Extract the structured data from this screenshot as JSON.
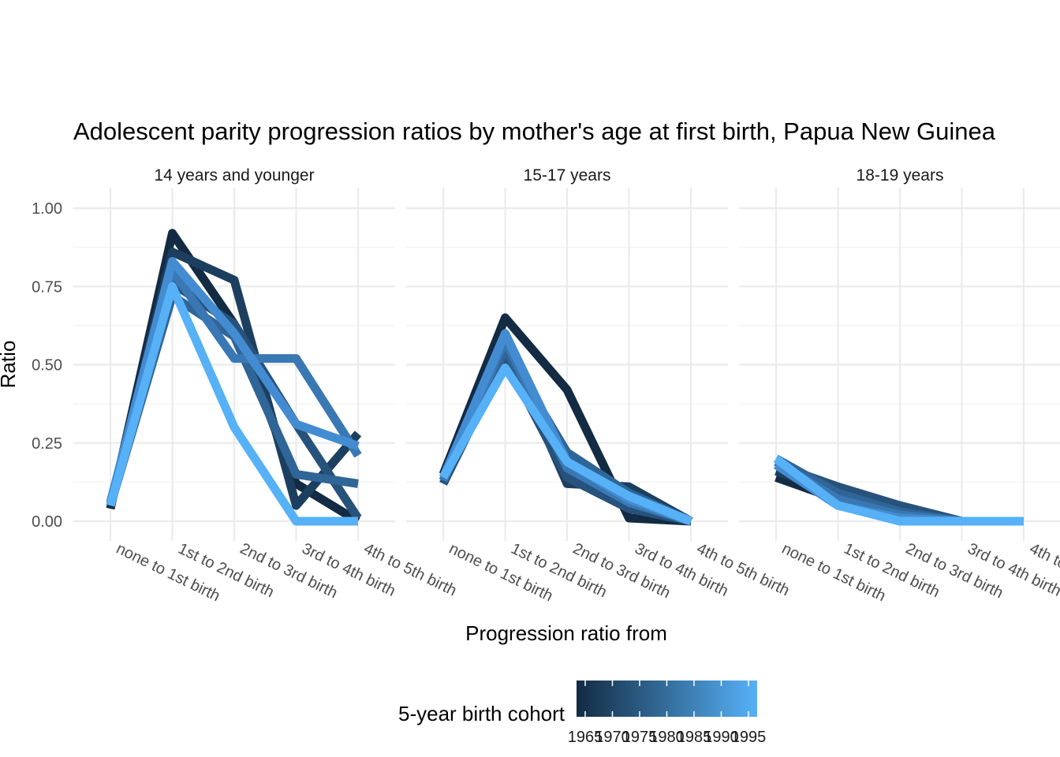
{
  "chart_data": {
    "type": "line",
    "title": "Adolescent parity progression ratios by mother's age at first birth,  Papua New Guinea",
    "xlabel": "Progression ratio from",
    "ylabel": "Ratio",
    "ylim": [
      0,
      1
    ],
    "yticks": [
      "0.00",
      "0.25",
      "0.50",
      "0.75",
      "1.00"
    ],
    "ytick_values": [
      0,
      0.25,
      0.5,
      0.75,
      1
    ],
    "categories": [
      "none to 1st birth",
      "1st to 2nd birth",
      "2nd to 3rd birth",
      "3rd to 4th birth",
      "4th to 5th birth"
    ],
    "grid": true,
    "legend": {
      "title": "5-year birth cohort",
      "position": "bottom",
      "ticks": [
        "1965",
        "1970",
        "1975",
        "1980",
        "1985",
        "1990",
        "1995"
      ],
      "colors": [
        "#132B43",
        "#56B1F7"
      ]
    },
    "facets": [
      {
        "label": "14 years and younger",
        "series": [
          {
            "cohort": 1965,
            "color": "#132B43",
            "values": [
              0.04,
              0.92,
              0.63,
              0.12,
              0.0
            ]
          },
          {
            "cohort": 1970,
            "color": "#1d3f5f",
            "values": [
              0.05,
              0.86,
              0.77,
              0.05,
              0.28
            ]
          },
          {
            "cohort": 1975,
            "color": "#27527b",
            "values": [
              0.05,
              0.76,
              0.63,
              0.31,
              0.01
            ]
          },
          {
            "cohort": 1980,
            "color": "#306597",
            "values": [
              0.05,
              0.72,
              0.59,
              0.15,
              0.12
            ]
          },
          {
            "cohort": 1985,
            "color": "#3a78b4",
            "values": [
              0.06,
              0.8,
              0.52,
              0.52,
              0.21
            ]
          },
          {
            "cohort": 1990,
            "color": "#448cd1",
            "values": [
              0.06,
              0.83,
              0.6,
              0.31,
              0.24
            ]
          },
          {
            "cohort": 1995,
            "color": "#56B1F7",
            "values": [
              0.05,
              0.75,
              0.3,
              0.0,
              0.0
            ]
          }
        ]
      },
      {
        "label": "15-17 years",
        "series": [
          {
            "cohort": 1965,
            "color": "#132B43",
            "values": [
              0.15,
              0.65,
              0.42,
              0.01,
              0.0
            ]
          },
          {
            "cohort": 1970,
            "color": "#1d3f5f",
            "values": [
              0.13,
              0.57,
              0.12,
              0.11,
              0.0
            ]
          },
          {
            "cohort": 1975,
            "color": "#27527b",
            "values": [
              0.12,
              0.52,
              0.14,
              0.04,
              0.0
            ]
          },
          {
            "cohort": 1980,
            "color": "#306597",
            "values": [
              0.13,
              0.55,
              0.22,
              0.09,
              0.0
            ]
          },
          {
            "cohort": 1985,
            "color": "#3a78b4",
            "values": [
              0.13,
              0.58,
              0.17,
              0.06,
              0.0
            ]
          },
          {
            "cohort": 1990,
            "color": "#448cd1",
            "values": [
              0.14,
              0.6,
              0.19,
              0.07,
              0.0
            ]
          },
          {
            "cohort": 1995,
            "color": "#56B1F7",
            "values": [
              0.14,
              0.49,
              0.19,
              0.08,
              0.0
            ]
          }
        ]
      },
      {
        "label": "18-19 years",
        "series": [
          {
            "cohort": 1965,
            "color": "#132B43",
            "values": [
              0.14,
              0.07,
              0.03,
              0.0,
              0.0
            ]
          },
          {
            "cohort": 1970,
            "color": "#1d3f5f",
            "values": [
              0.16,
              0.09,
              0.02,
              0.0,
              0.0
            ]
          },
          {
            "cohort": 1975,
            "color": "#27527b",
            "values": [
              0.18,
              0.11,
              0.05,
              0.0,
              0.0
            ]
          },
          {
            "cohort": 1980,
            "color": "#306597",
            "values": [
              0.2,
              0.09,
              0.03,
              0.0,
              0.0
            ]
          },
          {
            "cohort": 1985,
            "color": "#3a78b4",
            "values": [
              0.19,
              0.07,
              0.02,
              0.0,
              0.0
            ]
          },
          {
            "cohort": 1990,
            "color": "#448cd1",
            "values": [
              0.18,
              0.05,
              0.01,
              0.0,
              0.0
            ]
          },
          {
            "cohort": 1995,
            "color": "#56B1F7",
            "values": [
              0.2,
              0.05,
              0.0,
              0.0,
              0.0
            ]
          }
        ]
      }
    ]
  }
}
